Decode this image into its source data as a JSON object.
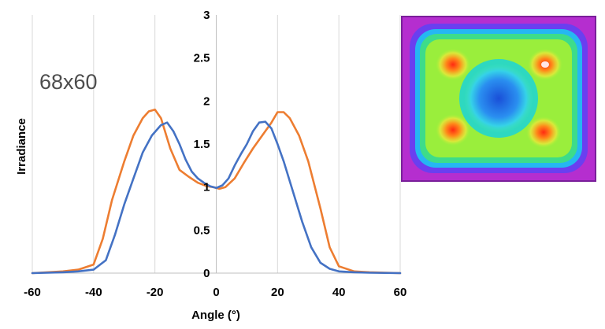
{
  "chart_data": {
    "type": "line",
    "xlabel": "Angle (°)",
    "ylabel": "Irradiance",
    "xlim": [
      -60,
      60
    ],
    "ylim": [
      0,
      3
    ],
    "x_ticks": [
      "-60",
      "-40",
      "-20",
      "0",
      "20",
      "40",
      "60"
    ],
    "y_ticks": [
      "0",
      "0.5",
      "1",
      "1.5",
      "2",
      "2.5",
      "3"
    ],
    "grid": "vertical",
    "annotation": "68x60",
    "series": [
      {
        "name": "orange",
        "color": "#ed7d31",
        "x": [
          -60,
          -50,
          -45,
          -40,
          -37,
          -34,
          -30,
          -27,
          -24,
          -22,
          -20,
          -18,
          -15,
          -12,
          -9,
          -6,
          -3,
          -1,
          0,
          1,
          3,
          6,
          9,
          12,
          15,
          18,
          20,
          22,
          24,
          27,
          30,
          34,
          37,
          40,
          45,
          50,
          60
        ],
        "y": [
          0,
          0.02,
          0.04,
          0.1,
          0.4,
          0.85,
          1.3,
          1.6,
          1.8,
          1.88,
          1.9,
          1.8,
          1.45,
          1.2,
          1.12,
          1.05,
          1.01,
          1.0,
          0.99,
          0.98,
          1.0,
          1.1,
          1.28,
          1.45,
          1.6,
          1.75,
          1.87,
          1.87,
          1.8,
          1.6,
          1.3,
          0.75,
          0.3,
          0.08,
          0.02,
          0.01,
          0
        ]
      },
      {
        "name": "blue",
        "color": "#4472c4",
        "x": [
          -60,
          -50,
          -45,
          -40,
          -36,
          -33,
          -30,
          -27,
          -24,
          -21,
          -18,
          -16,
          -14,
          -12,
          -10,
          -8,
          -6,
          -4,
          -2,
          0,
          2,
          4,
          6,
          8,
          10,
          12,
          14,
          16,
          18,
          20,
          22,
          25,
          28,
          31,
          34,
          37,
          40,
          45,
          50,
          60
        ],
        "y": [
          0,
          0.01,
          0.02,
          0.04,
          0.15,
          0.45,
          0.8,
          1.1,
          1.4,
          1.6,
          1.72,
          1.75,
          1.65,
          1.5,
          1.32,
          1.18,
          1.1,
          1.05,
          1.01,
          0.99,
          1.02,
          1.1,
          1.25,
          1.38,
          1.5,
          1.65,
          1.75,
          1.76,
          1.68,
          1.5,
          1.3,
          0.95,
          0.6,
          0.3,
          0.12,
          0.05,
          0.02,
          0.01,
          0.005,
          0
        ]
      }
    ]
  },
  "inset": {
    "description_icon": "irradiance-heatmap-image"
  }
}
